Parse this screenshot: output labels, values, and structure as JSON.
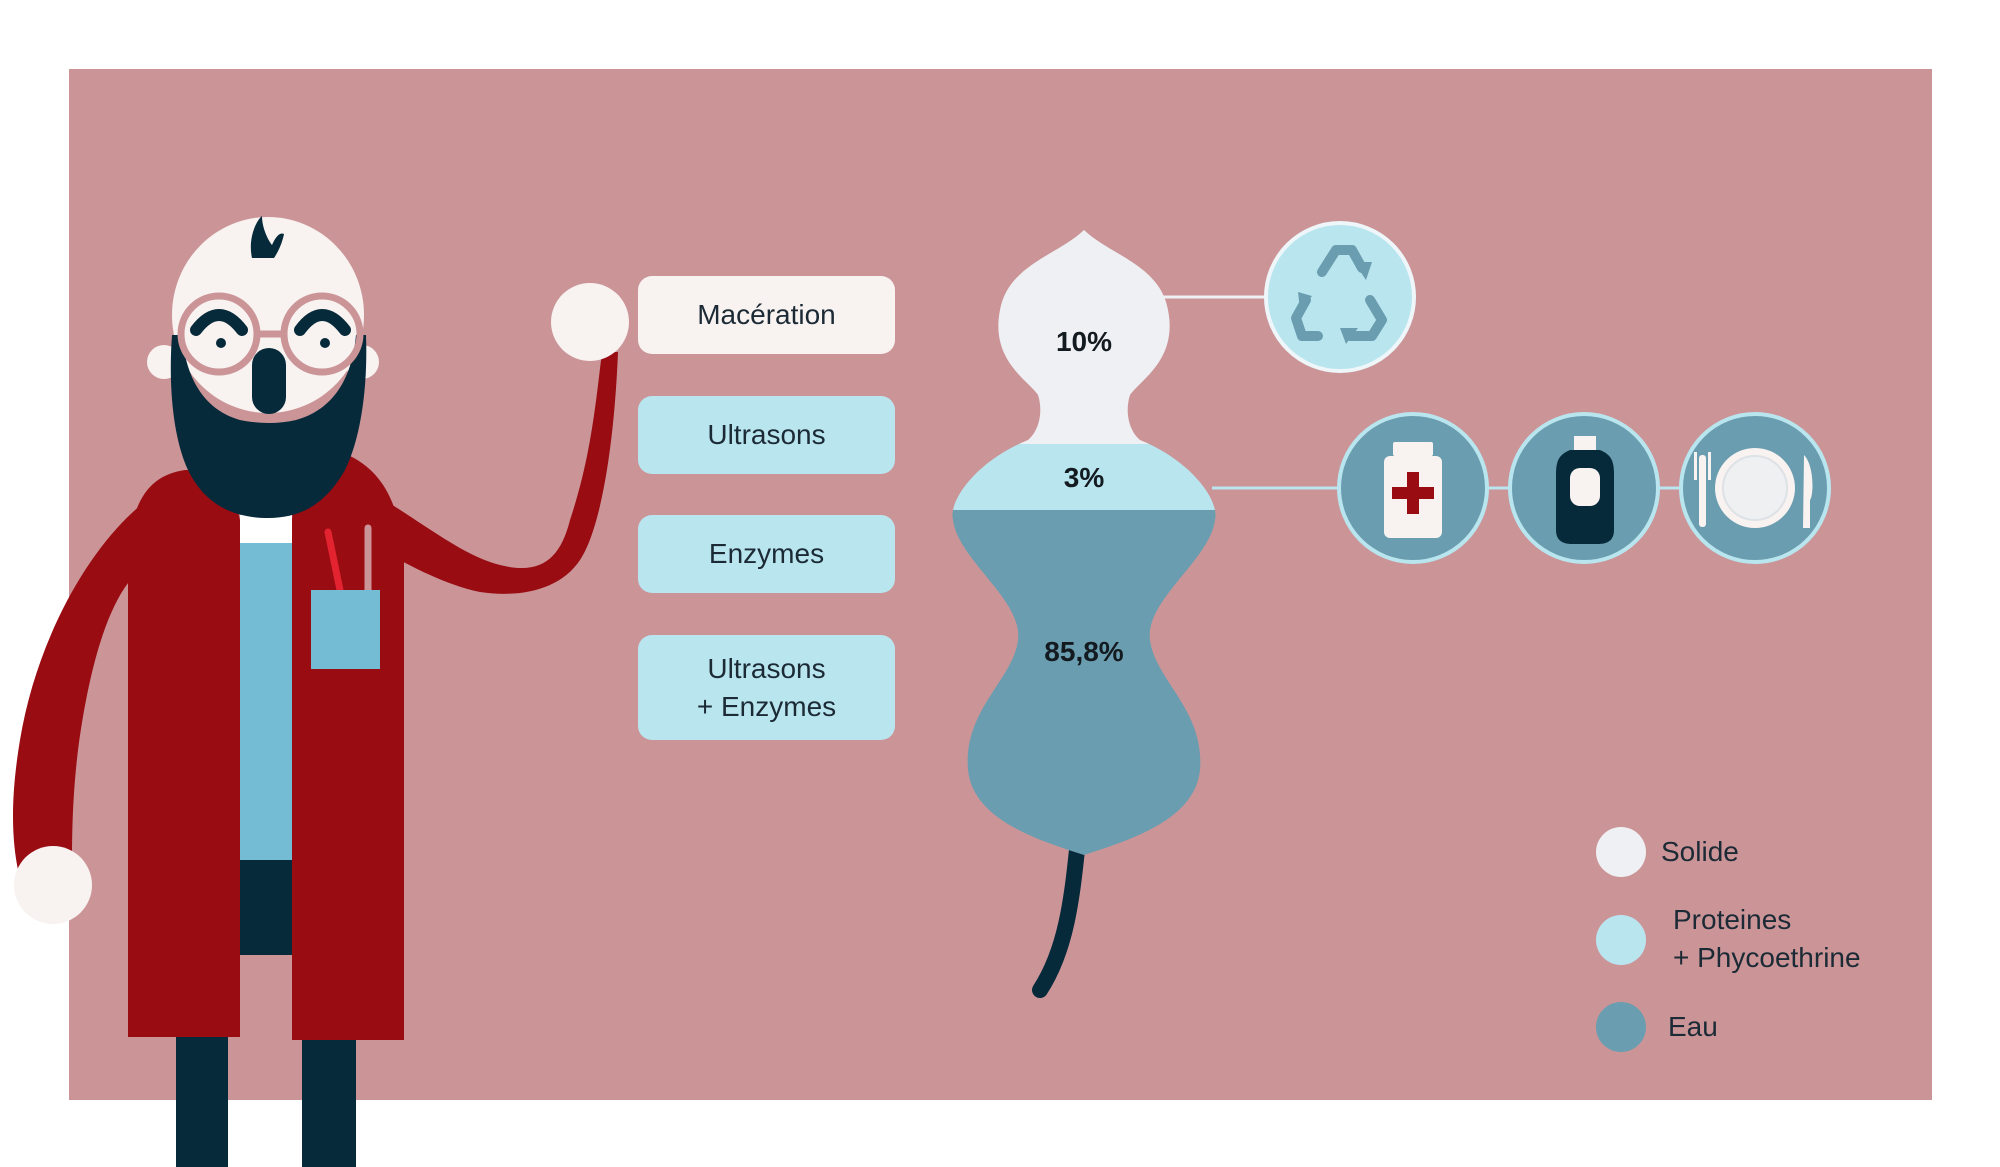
{
  "colors": {
    "panel": "#cb9598",
    "solid": "#eff0f3",
    "proteins": "#b9e5ef",
    "water": "#6a9daf",
    "dark": "#062a3a",
    "coat": "#980c12"
  },
  "methods": [
    {
      "lines": [
        "Macération"
      ],
      "style": "primary"
    },
    {
      "lines": [
        "Ultrasons"
      ],
      "style": "alt"
    },
    {
      "lines": [
        "Enzymes"
      ],
      "style": "alt"
    },
    {
      "lines": [
        "Ultrasons",
        "+ Enzymes"
      ],
      "style": "alt"
    }
  ],
  "composition": {
    "solid_label": "10%",
    "proteins_label": "3%",
    "water_label": "85,8%"
  },
  "applications": {
    "solid": [
      "recycle-icon"
    ],
    "proteins": [
      "medicine-bottle-icon",
      "cosmetic-bottle-icon",
      "plate-cutlery-icon"
    ]
  },
  "legend": [
    {
      "key": "solid",
      "lines": [
        "Solide"
      ]
    },
    {
      "key": "proteins",
      "lines": [
        "Proteines",
        "+ Phycoethrine"
      ]
    },
    {
      "key": "water",
      "lines": [
        "Eau"
      ]
    }
  ]
}
